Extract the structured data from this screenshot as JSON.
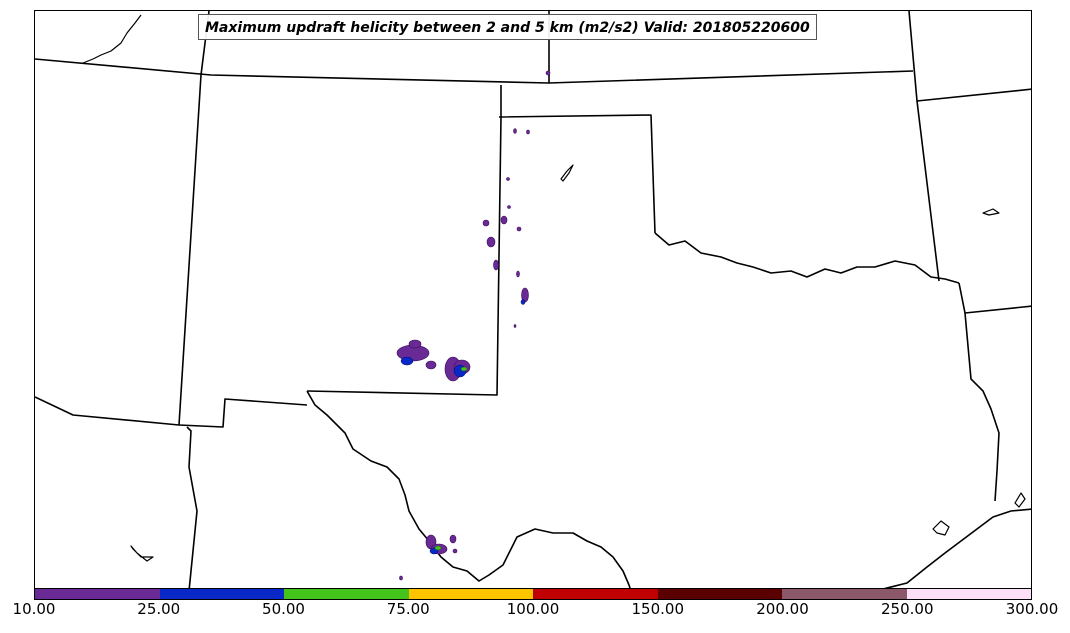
{
  "title": "Maximum updraft helicity between 2 and 5 km (m2/s2) Valid: 201805220600",
  "colorbar": {
    "segments": [
      {
        "color": "#6a2a96"
      },
      {
        "color": "#0a28c8"
      },
      {
        "color": "#44c41a"
      },
      {
        "color": "#ffc400"
      },
      {
        "color": "#c00000"
      },
      {
        "color": "#5a0000"
      },
      {
        "color": "#8a5868"
      },
      {
        "color": "#fde0f8"
      }
    ],
    "tick_labels": [
      "10.00",
      "25.00",
      "50.00",
      "75.00",
      "100.00",
      "150.00",
      "200.00",
      "250.00",
      "300.00"
    ]
  }
}
